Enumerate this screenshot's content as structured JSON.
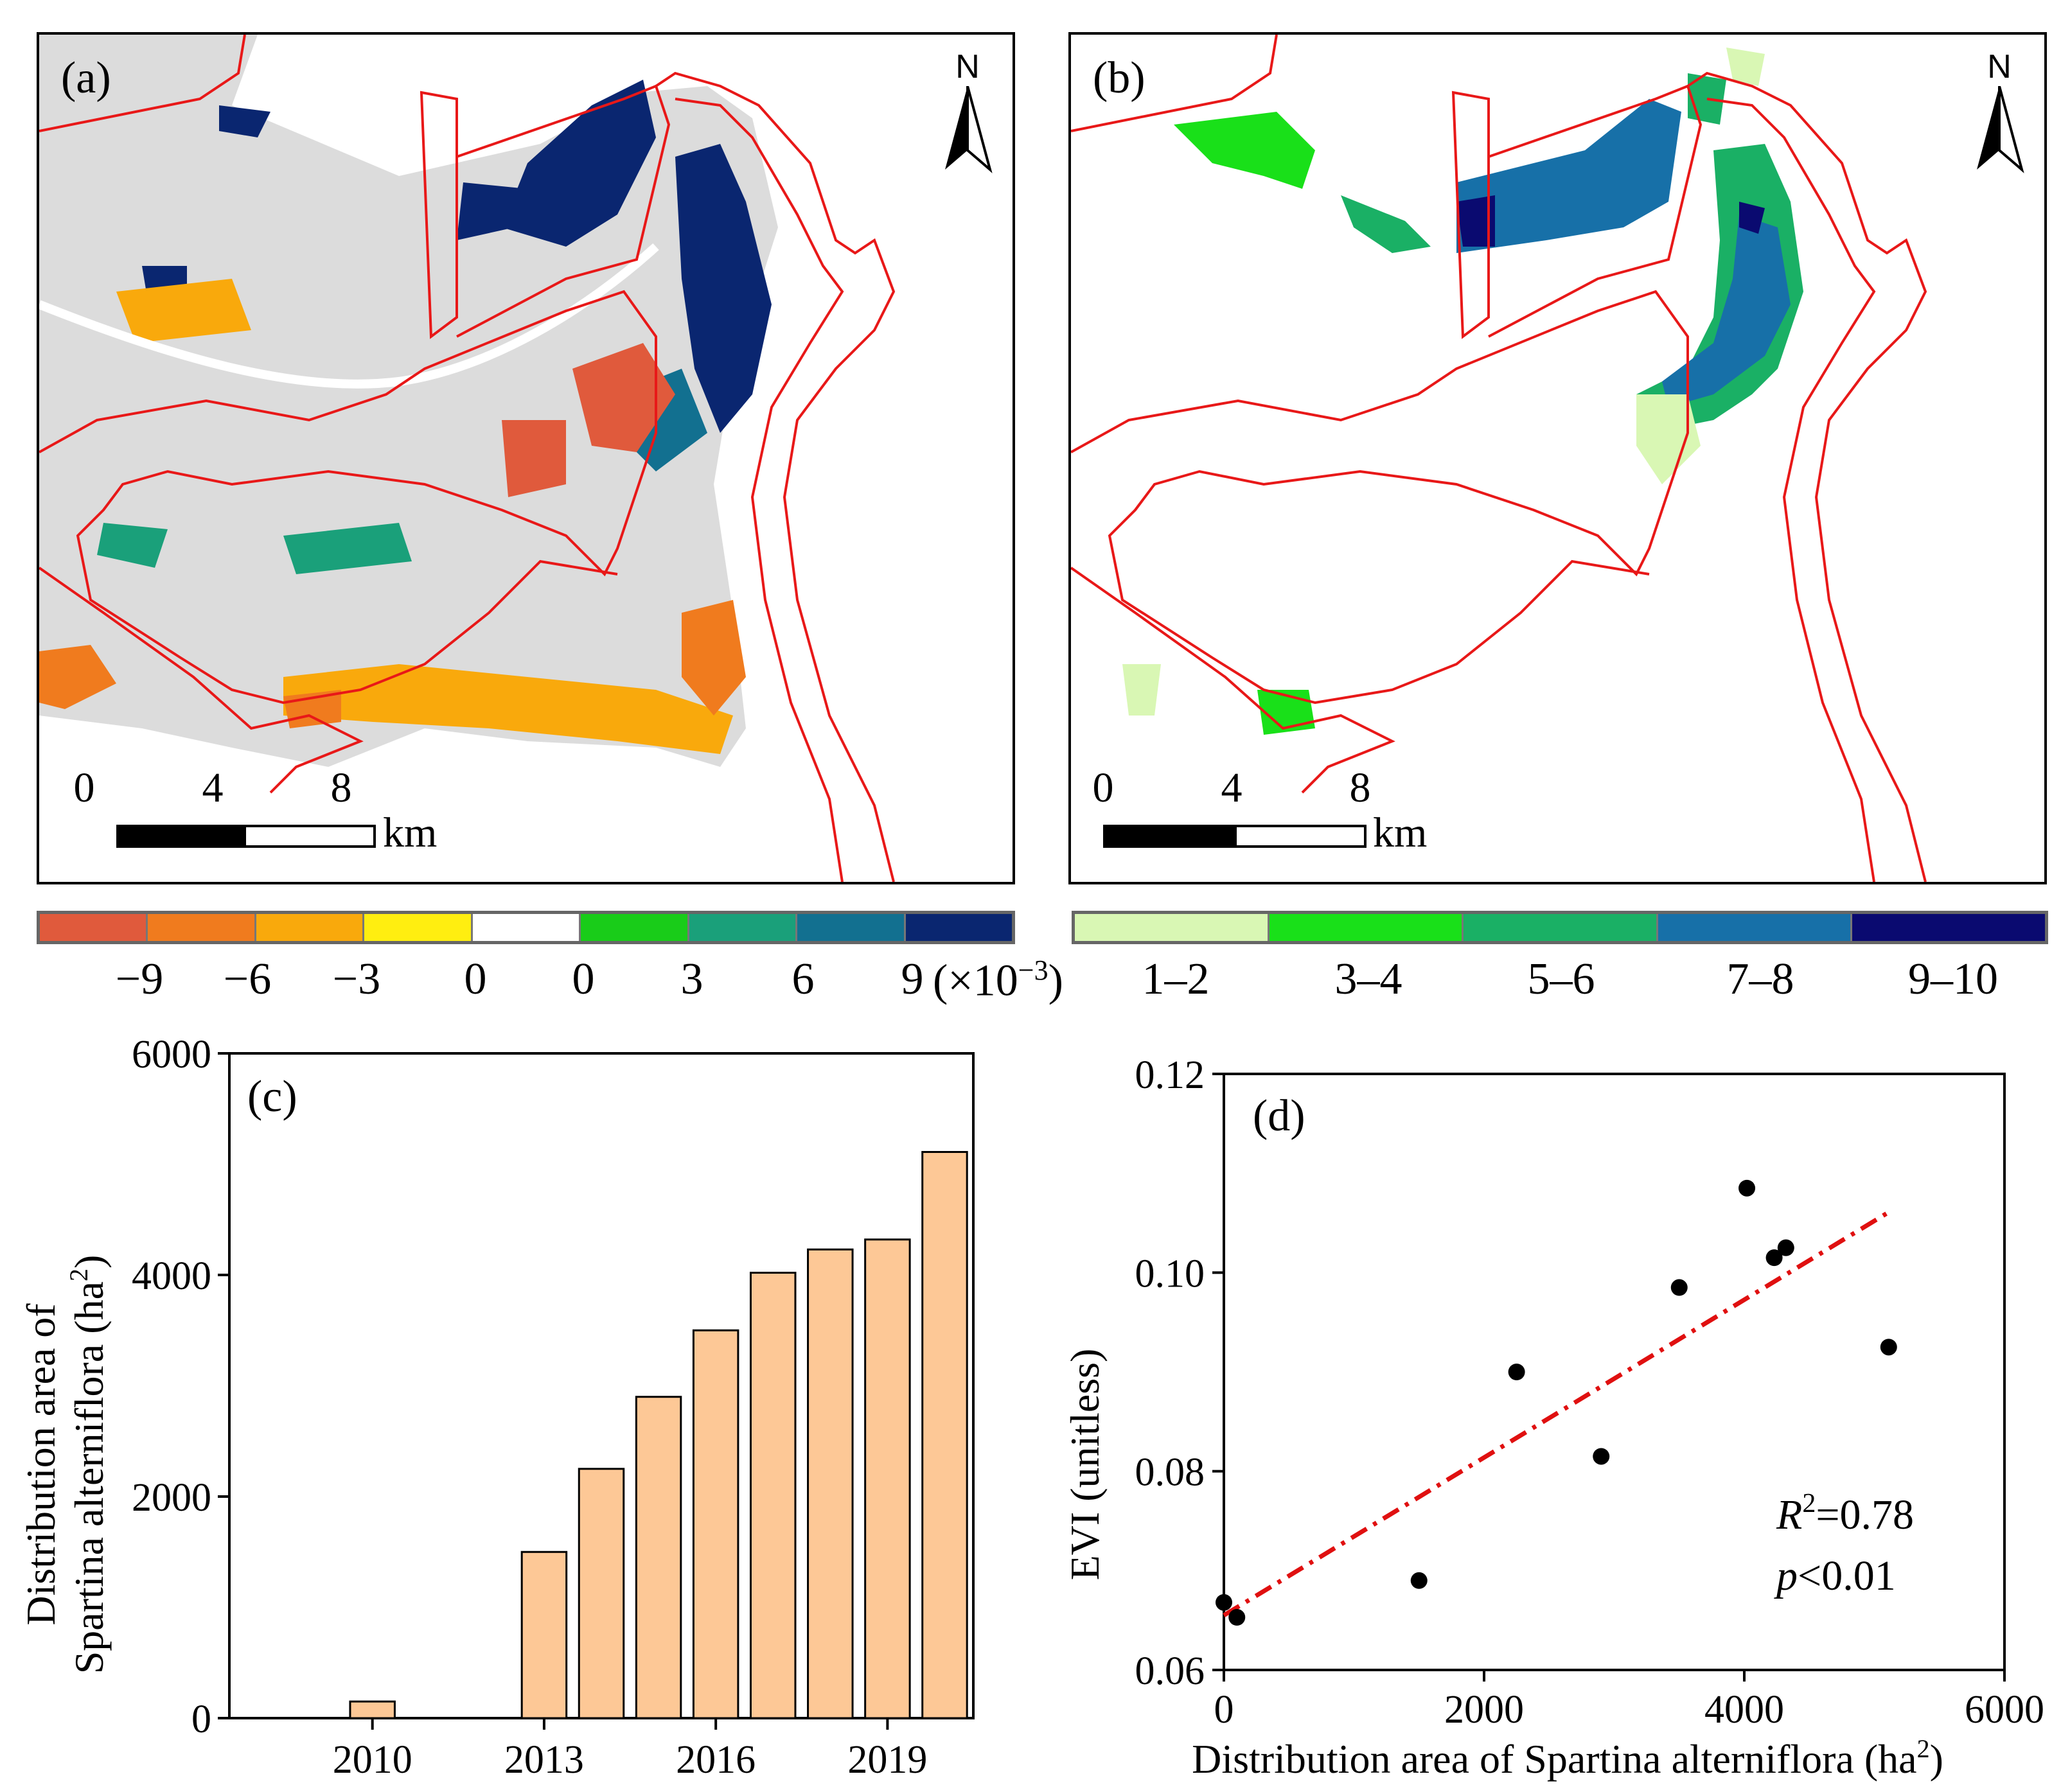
{
  "map_a": {
    "panel_label": "(a)",
    "north_label": "N",
    "scale_ticks": [
      "0",
      "4",
      "8"
    ],
    "scale_unit": "km",
    "legend_colors": [
      "#e05a3c",
      "#f07b1e",
      "#f9a90c",
      "#ffee10",
      "#ffffff",
      "#19cc19",
      "#1aa07a",
      "#127090",
      "#0a2670"
    ],
    "legend_labels": [
      "−9",
      "−6",
      "−3",
      "0",
      "0",
      "3",
      "6",
      "9"
    ],
    "legend_multiplier": "(×10",
    "legend_multiplier_exp": "−3",
    "legend_multiplier_close": ")"
  },
  "map_b": {
    "panel_label": "(b)",
    "north_label": "N",
    "scale_ticks": [
      "0",
      "4",
      "8"
    ],
    "scale_unit": "km",
    "legend_colors": [
      "#d9f7b4",
      "#19e019",
      "#1ab065",
      "#1770a8",
      "#0a0a70"
    ],
    "legend_labels": [
      "1–2",
      "3–4",
      "5–6",
      "7–8",
      "9–10"
    ]
  },
  "chart_data": [
    {
      "type": "bar",
      "panel_label": "(c)",
      "categories": [
        "2008",
        "2009",
        "2010",
        "2011",
        "2012",
        "2013",
        "2014",
        "2015",
        "2016",
        "2017",
        "2018",
        "2019",
        "2020"
      ],
      "values": [
        0,
        0,
        150,
        0,
        0,
        1500,
        2250,
        2900,
        3500,
        4020,
        4230,
        4320,
        5110
      ],
      "xticks": [
        "2010",
        "2013",
        "2016",
        "2019"
      ],
      "yticks": [
        "0",
        "2000",
        "4000",
        "6000"
      ],
      "ylim": [
        0,
        6000
      ],
      "xlabel": "",
      "ylabel_line1": "Distribution area of",
      "ylabel_line2": "Spartina alterniflora (ha",
      "ylabel_exp": "2",
      "ylabel_close": ")",
      "bar_color": "#fdc896"
    },
    {
      "type": "scatter",
      "panel_label": "(d)",
      "x": [
        0,
        100,
        1500,
        2250,
        2900,
        3500,
        4020,
        4230,
        4320,
        5110
      ],
      "y": [
        0.0668,
        0.0653,
        0.069,
        0.09,
        0.0815,
        0.0985,
        0.1085,
        0.1015,
        0.1025,
        0.0925
      ],
      "xlim": [
        0,
        6000
      ],
      "ylim": [
        0.06,
        0.12
      ],
      "xticks": [
        "0",
        "2000",
        "4000",
        "6000"
      ],
      "yticks": [
        "0.06",
        "0.08",
        "0.10",
        "0.12"
      ],
      "xlabel": "Distribution area of Spartina alterniflora (ha",
      "xlabel_exp": "2",
      "xlabel_close": ")",
      "ylabel": "EVI (unitless)",
      "fit_line": {
        "x": [
          0,
          5100
        ],
        "y": [
          0.0655,
          0.106
        ]
      },
      "fit_color": "#e01010",
      "r2_symbol": "R",
      "r2_exp": "2",
      "r2_value": "=0.78",
      "p_symbol": "p",
      "p_value": "<0.01"
    }
  ]
}
